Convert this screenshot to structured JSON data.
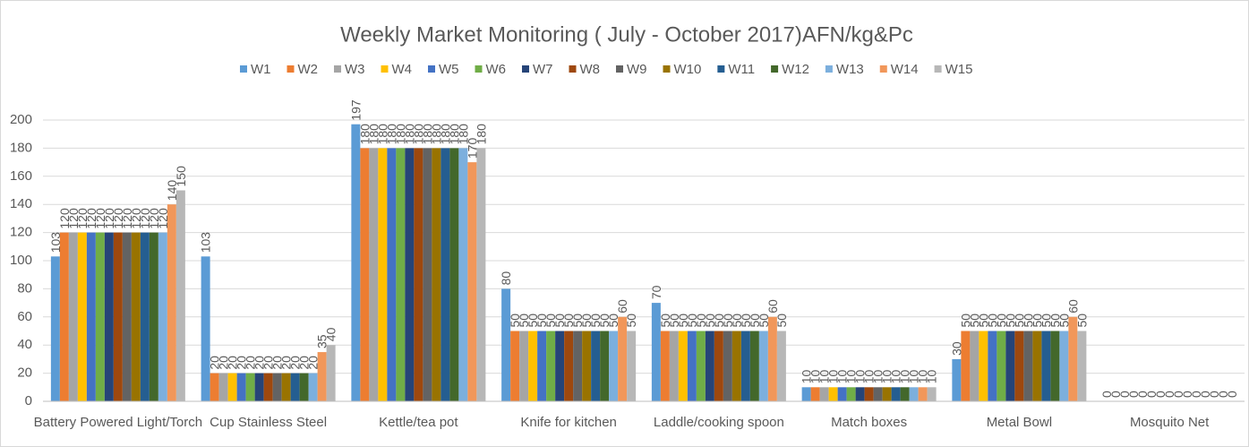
{
  "chart_data": {
    "type": "bar",
    "title": "Weekly Market Monitoring ( July - October 2017)AFN/kg&Pc",
    "categories": [
      "Battery Powered Light/Torch",
      "Cup Stainless Steel",
      "Kettle/tea pot",
      "Knife for kitchen",
      "Laddle/cooking spoon",
      "Match boxes",
      "Metal Bowl",
      "Mosquito Net"
    ],
    "series": [
      {
        "name": "W1",
        "color": "#5b9bd5",
        "values": [
          103,
          103,
          197,
          80,
          70,
          10,
          30,
          0
        ]
      },
      {
        "name": "W2",
        "color": "#ed7d31",
        "values": [
          120,
          20,
          180,
          50,
          50,
          10,
          50,
          0
        ]
      },
      {
        "name": "W3",
        "color": "#a5a5a5",
        "values": [
          120,
          20,
          180,
          50,
          50,
          10,
          50,
          0
        ]
      },
      {
        "name": "W4",
        "color": "#ffc000",
        "values": [
          120,
          20,
          180,
          50,
          50,
          10,
          50,
          0
        ]
      },
      {
        "name": "W5",
        "color": "#4472c4",
        "values": [
          120,
          20,
          180,
          50,
          50,
          10,
          50,
          0
        ]
      },
      {
        "name": "W6",
        "color": "#70ad47",
        "values": [
          120,
          20,
          180,
          50,
          50,
          10,
          50,
          0
        ]
      },
      {
        "name": "W7",
        "color": "#264478",
        "values": [
          120,
          20,
          180,
          50,
          50,
          10,
          50,
          0
        ]
      },
      {
        "name": "W8",
        "color": "#9e480e",
        "values": [
          120,
          20,
          180,
          50,
          50,
          10,
          50,
          0
        ]
      },
      {
        "name": "W9",
        "color": "#636363",
        "values": [
          120,
          20,
          180,
          50,
          50,
          10,
          50,
          0
        ]
      },
      {
        "name": "W10",
        "color": "#997300",
        "values": [
          120,
          20,
          180,
          50,
          50,
          10,
          50,
          0
        ]
      },
      {
        "name": "W11",
        "color": "#255e91",
        "values": [
          120,
          20,
          180,
          50,
          50,
          10,
          50,
          0
        ]
      },
      {
        "name": "W12",
        "color": "#43682b",
        "values": [
          120,
          20,
          180,
          50,
          50,
          10,
          50,
          0
        ]
      },
      {
        "name": "W13",
        "color": "#7cafdd",
        "values": [
          120,
          20,
          180,
          50,
          50,
          10,
          50,
          0
        ]
      },
      {
        "name": "W14",
        "color": "#f1975a",
        "values": [
          140,
          35,
          170,
          60,
          60,
          10,
          60,
          0
        ]
      },
      {
        "name": "W15",
        "color": "#b7b7b7",
        "values": [
          150,
          40,
          180,
          50,
          50,
          10,
          50,
          0
        ]
      }
    ],
    "ylim": [
      0,
      200
    ],
    "yticks": [
      0,
      20,
      40,
      60,
      80,
      100,
      120,
      140,
      160,
      180,
      200
    ],
    "grid": true
  }
}
